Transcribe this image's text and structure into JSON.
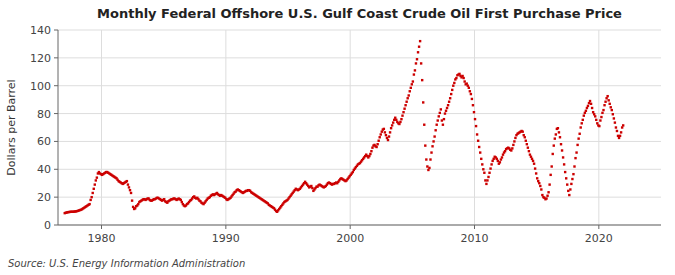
{
  "chart_data": {
    "type": "scatter",
    "title": "Monthly Federal Offshore U.S. Gulf Coast Crude Oil First Purchase Price",
    "ylabel": "Dollars per Barrel",
    "source": "Source: U.S. Energy Information Administration",
    "color": "#cc0000",
    "marker": "square",
    "grid": true,
    "xlim": [
      1976.5,
      2025.0
    ],
    "ylim": [
      0,
      140
    ],
    "xticks": [
      1980,
      1990,
      2000,
      2010,
      2020
    ],
    "yticks": [
      0,
      20,
      40,
      60,
      80,
      100,
      120,
      140
    ],
    "x": [
      1977.0416666666667,
      1977.125,
      1977.2083333333333,
      1977.2916666666667,
      1977.375,
      1977.4583333333333,
      1977.5416666666667,
      1977.625,
      1977.7083333333333,
      1977.7916666666667,
      1977.875,
      1977.9583333333333,
      1978.0416666666667,
      1978.125,
      1978.2083333333333,
      1978.2916666666667,
      1978.375,
      1978.4583333333333,
      1978.5416666666667,
      1978.625,
      1978.7083333333333,
      1978.7916666666667,
      1978.875,
      1978.9583333333333,
      1979.0416666666667,
      1979.125,
      1979.2083333333333,
      1979.2916666666667,
      1979.375,
      1979.4583333333333,
      1979.5416666666667,
      1979.625,
      1979.7083333333333,
      1979.7916666666667,
      1979.875,
      1979.9583333333333,
      1980.0416666666667,
      1980.125,
      1980.2083333333333,
      1980.2916666666667,
      1980.375,
      1980.4583333333333,
      1980.5416666666667,
      1980.625,
      1980.7083333333333,
      1980.7916666666667,
      1980.875,
      1980.9583333333333,
      1981.0416666666667,
      1981.125,
      1981.2083333333333,
      1981.2916666666667,
      1981.375,
      1981.4583333333333,
      1981.5416666666667,
      1981.625,
      1981.7083333333333,
      1981.7916666666667,
      1981.875,
      1981.9583333333333,
      1982.0416666666667,
      1982.125,
      1982.2083333333333,
      1982.2916666666667,
      1982.375,
      1982.4583333333333,
      1982.5416666666667,
      1982.625,
      1982.7083333333333,
      1982.7916666666667,
      1982.875,
      1982.9583333333333,
      1983.0416666666667,
      1983.125,
      1983.2083333333333,
      1983.2916666666667,
      1983.375,
      1983.4583333333333,
      1983.5416666666667,
      1983.625,
      1983.7083333333333,
      1983.7916666666667,
      1983.875,
      1983.9583333333333,
      1984.0416666666667,
      1984.125,
      1984.2083333333333,
      1984.2916666666667,
      1984.375,
      1984.4583333333333,
      1984.5416666666667,
      1984.625,
      1984.7083333333333,
      1984.7916666666667,
      1984.875,
      1984.9583333333333,
      1985.0416666666667,
      1985.125,
      1985.2083333333333,
      1985.2916666666667,
      1985.375,
      1985.4583333333333,
      1985.5416666666667,
      1985.625,
      1985.7083333333333,
      1985.7916666666667,
      1985.875,
      1985.9583333333333,
      1986.0416666666667,
      1986.125,
      1986.2083333333333,
      1986.2916666666667,
      1986.375,
      1986.4583333333333,
      1986.5416666666667,
      1986.625,
      1986.7083333333333,
      1986.7916666666667,
      1986.875,
      1986.9583333333333,
      1987.0416666666667,
      1987.125,
      1987.2083333333333,
      1987.2916666666667,
      1987.375,
      1987.4583333333333,
      1987.5416666666667,
      1987.625,
      1987.7083333333333,
      1987.7916666666667,
      1987.875,
      1987.9583333333333,
      1988.0416666666667,
      1988.125,
      1988.2083333333333,
      1988.2916666666667,
      1988.375,
      1988.4583333333333,
      1988.5416666666667,
      1988.625,
      1988.7083333333333,
      1988.7916666666667,
      1988.875,
      1988.9583333333333,
      1989.0416666666667,
      1989.125,
      1989.2083333333333,
      1989.2916666666667,
      1989.375,
      1989.4583333333333,
      1989.5416666666667,
      1989.625,
      1989.7083333333333,
      1989.7916666666667,
      1989.875,
      1989.9583333333333,
      1990.0416666666667,
      1990.125,
      1990.2083333333333,
      1990.2916666666667,
      1990.375,
      1990.4583333333333,
      1990.5416666666667,
      1990.625,
      1990.7083333333333,
      1990.7916666666667,
      1990.875,
      1990.9583333333333,
      1991.0416666666667,
      1991.125,
      1991.2083333333333,
      1991.2916666666667,
      1991.375,
      1991.4583333333333,
      1991.5416666666667,
      1991.625,
      1991.7083333333333,
      1991.7916666666667,
      1991.875,
      1991.9583333333333,
      1992.0416666666667,
      1992.125,
      1992.2083333333333,
      1992.2916666666667,
      1992.375,
      1992.4583333333333,
      1992.5416666666667,
      1992.625,
      1992.7083333333333,
      1992.7916666666667,
      1992.875,
      1992.9583333333333,
      1993.0416666666667,
      1993.125,
      1993.2083333333333,
      1993.2916666666667,
      1993.375,
      1993.4583333333333,
      1993.5416666666667,
      1993.625,
      1993.7083333333333,
      1993.7916666666667,
      1993.875,
      1993.9583333333333,
      1994.0416666666667,
      1994.125,
      1994.2083333333333,
      1994.2916666666667,
      1994.375,
      1994.4583333333333,
      1994.5416666666667,
      1994.625,
      1994.7083333333333,
      1994.7916666666667,
      1994.875,
      1994.9583333333333,
      1995.0416666666667,
      1995.125,
      1995.2083333333333,
      1995.2916666666667,
      1995.375,
      1995.4583333333333,
      1995.5416666666667,
      1995.625,
      1995.7083333333333,
      1995.7916666666667,
      1995.875,
      1995.9583333333333,
      1996.0416666666667,
      1996.125,
      1996.2083333333333,
      1996.2916666666667,
      1996.375,
      1996.4583333333333,
      1996.5416666666667,
      1996.625,
      1996.7083333333333,
      1996.7916666666667,
      1996.875,
      1996.9583333333333,
      1997.0416666666667,
      1997.125,
      1997.2083333333333,
      1997.2916666666667,
      1997.375,
      1997.4583333333333,
      1997.5416666666667,
      1997.625,
      1997.7083333333333,
      1997.7916666666667,
      1997.875,
      1997.9583333333333,
      1998.0416666666667,
      1998.125,
      1998.2083333333333,
      1998.2916666666667,
      1998.375,
      1998.4583333333333,
      1998.5416666666667,
      1998.625,
      1998.7083333333333,
      1998.7916666666667,
      1998.875,
      1998.9583333333333,
      1999.0416666666667,
      1999.125,
      1999.2083333333333,
      1999.2916666666667,
      1999.375,
      1999.4583333333333,
      1999.5416666666667,
      1999.625,
      1999.7083333333333,
      1999.7916666666667,
      1999.875,
      1999.9583333333333,
      2000.0416666666667,
      2000.125,
      2000.2083333333333,
      2000.2916666666667,
      2000.375,
      2000.4583333333333,
      2000.5416666666667,
      2000.625,
      2000.7083333333333,
      2000.7916666666667,
      2000.875,
      2000.9583333333333,
      2001.0416666666667,
      2001.125,
      2001.2083333333333,
      2001.2916666666667,
      2001.375,
      2001.4583333333333,
      2001.5416666666667,
      2001.625,
      2001.7083333333333,
      2001.7916666666667,
      2001.875,
      2001.9583333333333,
      2002.0416666666667,
      2002.125,
      2002.2083333333333,
      2002.2916666666667,
      2002.375,
      2002.4583333333333,
      2002.5416666666667,
      2002.625,
      2002.7083333333333,
      2002.7916666666667,
      2002.875,
      2002.9583333333333,
      2003.0416666666667,
      2003.125,
      2003.2083333333333,
      2003.2916666666667,
      2003.375,
      2003.4583333333333,
      2003.5416666666667,
      2003.625,
      2003.7083333333333,
      2003.7916666666667,
      2003.875,
      2003.9583333333333,
      2004.0416666666667,
      2004.125,
      2004.2083333333333,
      2004.2916666666667,
      2004.375,
      2004.4583333333333,
      2004.5416666666667,
      2004.625,
      2004.7083333333333,
      2004.7916666666667,
      2004.875,
      2004.9583333333333,
      2005.0416666666667,
      2005.125,
      2005.2083333333333,
      2005.2916666666667,
      2005.375,
      2005.4583333333333,
      2005.5416666666667,
      2005.625,
      2005.7083333333333,
      2005.7916666666667,
      2005.875,
      2005.9583333333333,
      2006.0416666666667,
      2006.125,
      2006.2083333333333,
      2006.2916666666667,
      2006.375,
      2006.4583333333333,
      2006.5416666666667,
      2006.625,
      2006.7083333333333,
      2006.7916666666667,
      2006.875,
      2006.9583333333333,
      2007.0416666666667,
      2007.125,
      2007.2083333333333,
      2007.2916666666667,
      2007.375,
      2007.4583333333333,
      2007.5416666666667,
      2007.625,
      2007.7083333333333,
      2007.7916666666667,
      2007.875,
      2007.9583333333333,
      2008.0416666666667,
      2008.125,
      2008.2083333333333,
      2008.2916666666667,
      2008.375,
      2008.4583333333333,
      2008.5416666666667,
      2008.625,
      2008.7083333333333,
      2008.7916666666667,
      2008.875,
      2008.9583333333333,
      2009.0416666666667,
      2009.125,
      2009.2083333333333,
      2009.2916666666667,
      2009.375,
      2009.4583333333333,
      2009.5416666666667,
      2009.625,
      2009.7083333333333,
      2009.7916666666667,
      2009.875,
      2009.9583333333333,
      2010.0416666666667,
      2010.125,
      2010.2083333333333,
      2010.2916666666667,
      2010.375,
      2010.4583333333333,
      2010.5416666666667,
      2010.625,
      2010.7083333333333,
      2010.7916666666667,
      2010.875,
      2010.9583333333333,
      2011.0416666666667,
      2011.125,
      2011.2083333333333,
      2011.2916666666667,
      2011.375,
      2011.4583333333333,
      2011.5416666666667,
      2011.625,
      2011.7083333333333,
      2011.7916666666667,
      2011.875,
      2011.9583333333333,
      2012.0416666666667,
      2012.125,
      2012.2083333333333,
      2012.2916666666667,
      2012.375,
      2012.4583333333333,
      2012.5416666666667,
      2012.625,
      2012.7083333333333,
      2012.7916666666667,
      2012.875,
      2012.9583333333333,
      2013.0416666666667,
      2013.125,
      2013.2083333333333,
      2013.2916666666667,
      2013.375,
      2013.4583333333333,
      2013.5416666666667,
      2013.625,
      2013.7083333333333,
      2013.7916666666667,
      2013.875,
      2013.9583333333333,
      2014.0416666666667,
      2014.125,
      2014.2083333333333,
      2014.2916666666667,
      2014.375,
      2014.4583333333333,
      2014.5416666666667,
      2014.625,
      2014.7083333333333,
      2014.7916666666667,
      2014.875,
      2014.9583333333333,
      2015.0416666666667,
      2015.125,
      2015.2083333333333,
      2015.2916666666667,
      2015.375,
      2015.4583333333333,
      2015.5416666666667,
      2015.625,
      2015.7083333333333,
      2015.7916666666667,
      2015.875,
      2015.9583333333333,
      2016.0416666666667,
      2016.125,
      2016.2083333333333,
      2016.2916666666667,
      2016.375,
      2016.4583333333333,
      2016.5416666666667,
      2016.625,
      2016.7083333333333,
      2016.7916666666667,
      2016.875,
      2016.9583333333333,
      2017.0416666666667,
      2017.125,
      2017.2083333333333,
      2017.2916666666667,
      2017.375,
      2017.4583333333333,
      2017.5416666666667,
      2017.625,
      2017.7083333333333,
      2017.7916666666667,
      2017.875,
      2017.9583333333333,
      2018.0416666666667,
      2018.125,
      2018.2083333333333,
      2018.2916666666667,
      2018.375,
      2018.4583333333333,
      2018.5416666666667,
      2018.625,
      2018.7083333333333,
      2018.7916666666667,
      2018.875,
      2018.9583333333333,
      2019.0416666666667,
      2019.125,
      2019.2083333333333,
      2019.2916666666667,
      2019.375,
      2019.4583333333333,
      2019.5416666666667,
      2019.625,
      2019.7083333333333,
      2019.7916666666667,
      2019.875,
      2019.9583333333333,
      2020.0416666666667,
      2020.125,
      2020.2083333333333,
      2020.2916666666667,
      2020.375,
      2020.4583333333333,
      2020.5416666666667,
      2020.625,
      2020.7083333333333,
      2020.7916666666667,
      2020.875,
      2020.9583333333333,
      2021.0416666666667,
      2021.125,
      2021.2083333333333,
      2021.2916666666667,
      2021.375,
      2021.4583333333333,
      2021.5416666666667,
      2021.625,
      2021.7083333333333,
      2021.7916666666667,
      2021.875,
      2021.9583333333333
    ],
    "values": [
      8.5,
      8.8,
      9.0,
      9.2,
      9.3,
      9.4,
      9.5,
      9.5,
      9.5,
      9.6,
      9.7,
      9.8,
      10.0,
      10.2,
      10.5,
      10.8,
      11.0,
      11.5,
      12.0,
      12.5,
      13.0,
      13.5,
      14.0,
      14.5,
      15.0,
      18.0,
      20.0,
      23.0,
      26.0,
      29.0,
      32.0,
      34.0,
      37.0,
      38.0,
      37.0,
      36.5,
      36.0,
      36.5,
      37.0,
      37.5,
      38.0,
      38.0,
      37.5,
      37.0,
      36.5,
      36.0,
      35.5,
      35.0,
      34.5,
      34.0,
      33.5,
      32.5,
      31.5,
      31.0,
      30.5,
      30.0,
      29.5,
      30.0,
      30.5,
      31.0,
      31.5,
      29.0,
      27.0,
      25.0,
      23.0,
      17.5,
      13.0,
      11.5,
      12.0,
      13.5,
      14.0,
      15.0,
      16.5,
      17.0,
      17.5,
      18.0,
      18.5,
      18.5,
      18.0,
      18.5,
      19.0,
      19.0,
      18.0,
      17.5,
      17.5,
      18.0,
      18.5,
      18.5,
      19.0,
      19.5,
      19.5,
      19.0,
      18.5,
      18.0,
      17.5,
      18.0,
      18.5,
      17.0,
      16.5,
      16.0,
      17.0,
      17.5,
      18.0,
      18.5,
      18.5,
      19.0,
      19.0,
      18.5,
      18.0,
      18.5,
      19.0,
      18.5,
      18.0,
      16.5,
      15.0,
      14.0,
      13.5,
      14.0,
      15.0,
      15.5,
      16.5,
      17.5,
      18.0,
      19.0,
      20.0,
      20.5,
      19.5,
      19.0,
      19.5,
      18.5,
      17.5,
      17.0,
      16.0,
      15.5,
      15.0,
      16.0,
      17.0,
      18.0,
      19.0,
      19.5,
      20.0,
      21.0,
      21.5,
      22.0,
      21.5,
      22.0,
      22.5,
      23.0,
      22.0,
      21.5,
      21.0,
      21.5,
      21.0,
      20.5,
      20.0,
      19.5,
      18.5,
      18.0,
      18.5,
      19.0,
      19.5,
      20.5,
      21.5,
      22.5,
      23.5,
      24.0,
      25.0,
      25.5,
      25.0,
      24.5,
      24.0,
      23.5,
      23.0,
      23.5,
      24.0,
      24.5,
      24.5,
      25.0,
      25.0,
      24.5,
      23.5,
      23.0,
      22.5,
      22.0,
      21.5,
      21.0,
      20.5,
      20.0,
      19.5,
      19.0,
      18.5,
      18.0,
      17.5,
      17.0,
      16.5,
      16.0,
      15.5,
      14.5,
      14.0,
      13.5,
      13.0,
      12.5,
      12.0,
      11.0,
      10.0,
      9.5,
      10.5,
      11.5,
      12.5,
      13.5,
      14.5,
      15.5,
      16.5,
      17.0,
      17.5,
      18.0,
      19.0,
      20.0,
      21.0,
      22.0,
      23.0,
      24.0,
      25.0,
      26.0,
      25.5,
      25.0,
      25.5,
      26.0,
      27.0,
      28.0,
      29.0,
      30.0,
      31.0,
      30.0,
      29.0,
      28.0,
      27.0,
      27.5,
      28.0,
      26.5,
      24.5,
      25.5,
      26.5,
      27.5,
      27.5,
      28.5,
      29.0,
      28.5,
      28.0,
      27.5,
      27.0,
      27.5,
      28.0,
      29.0,
      30.0,
      30.5,
      30.0,
      29.5,
      29.0,
      29.5,
      29.5,
      30.0,
      30.5,
      30.0,
      31.0,
      32.0,
      33.0,
      33.5,
      33.0,
      32.5,
      32.0,
      31.5,
      32.0,
      33.0,
      34.0,
      35.0,
      36.0,
      37.0,
      38.0,
      39.5,
      40.5,
      41.5,
      42.5,
      43.5,
      44.0,
      44.5,
      45.5,
      46.5,
      47.5,
      48.5,
      49.5,
      50.5,
      49.5,
      48.5,
      49.5,
      51.0,
      53.0,
      55.5,
      57.0,
      57.5,
      56.5,
      56.0,
      58.0,
      60.5,
      63.0,
      65.0,
      67.0,
      68.5,
      69.0,
      66.5,
      64.5,
      62.5,
      61.0,
      63.5,
      66.5,
      69.5,
      71.5,
      73.5,
      75.5,
      77.0,
      75.5,
      74.0,
      73.0,
      72.5,
      74.0,
      76.0,
      78.5,
      81.0,
      83.5,
      86.0,
      88.5,
      91.0,
      93.0,
      96.0,
      98.5,
      101.0,
      103.0,
      108.0,
      111.0,
      116.0,
      119.0,
      124.0,
      128.0,
      132.0,
      116.0,
      104.0,
      88.0,
      72.0,
      57.0,
      47.0,
      42.0,
      39.5,
      41.0,
      47.0,
      52.0,
      56.5,
      60.0,
      63.5,
      68.0,
      72.0,
      75.0,
      78.0,
      80.5,
      83.0,
      75.0,
      72.0,
      76.0,
      80.0,
      82.0,
      84.0,
      86.0,
      88.5,
      91.0,
      94.0,
      97.0,
      100.0,
      102.0,
      104.5,
      105.5,
      107.5,
      108.0,
      108.5,
      107.0,
      106.0,
      107.0,
      105.5,
      103.0,
      101.0,
      101.5,
      100.0,
      98.5,
      96.0,
      94.0,
      90.5,
      86.0,
      81.0,
      76.0,
      71.0,
      65.0,
      60.5,
      56.0,
      52.0,
      47.5,
      43.5,
      40.0,
      37.5,
      32.0,
      29.5,
      32.0,
      34.5,
      37.5,
      40.5,
      43.5,
      46.0,
      47.5,
      49.0,
      48.5,
      47.5,
      46.0,
      44.0,
      45.0,
      47.0,
      48.5,
      50.5,
      52.0,
      53.0,
      54.5,
      55.0,
      55.5,
      55.0,
      54.0,
      53.5,
      55.0,
      57.5,
      60.0,
      62.5,
      64.5,
      65.5,
      66.0,
      66.5,
      67.0,
      67.5,
      67.0,
      64.5,
      63.0,
      60.5,
      58.0,
      55.5,
      53.0,
      50.5,
      49.0,
      47.5,
      46.0,
      44.0,
      40.5,
      37.0,
      33.5,
      31.5,
      30.0,
      28.0,
      25.5,
      21.5,
      20.0,
      19.5,
      18.5,
      19.0,
      21.0,
      23.5,
      29.0,
      36.0,
      42.0,
      51.0,
      57.0,
      62.0,
      65.0,
      69.0,
      69.5,
      66.5,
      63.0,
      58.0,
      53.5,
      48.5,
      43.5,
      38.0,
      33.5,
      29.0,
      24.5,
      21.5,
      25.5,
      29.5,
      33.0,
      36.5,
      42.0,
      48.0,
      52.0,
      57.5,
      62.0,
      65.5,
      70.0,
      73.0,
      75.5,
      78.5,
      80.5,
      82.0,
      84.0,
      85.5,
      87.5,
      89.0,
      87.0,
      84.0,
      81.0,
      79.5,
      78.0,
      75.5,
      73.0,
      71.5,
      71.0,
      75.0,
      77.5,
      80.5,
      82.5,
      86.0,
      88.5,
      91.0,
      92.5,
      89.5,
      87.0,
      84.5,
      82.5,
      79.5,
      76.5,
      73.5,
      70.0,
      67.5,
      64.0,
      62.5,
      64.0,
      66.5,
      70.0,
      71.5
    ]
  }
}
